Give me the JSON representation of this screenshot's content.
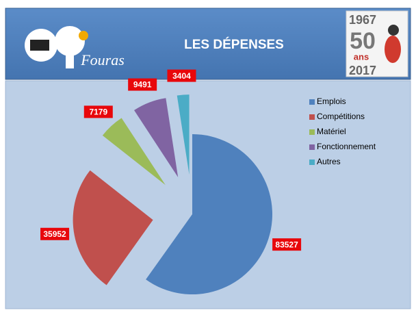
{
  "header": {
    "logo_text": "Fouras",
    "badge": {
      "year_start": "1967",
      "number": "50",
      "word": "ans",
      "year_end": "2017"
    }
  },
  "chart_data": {
    "type": "pie",
    "title": "LES DÉPENSES",
    "categories": [
      "Emplois",
      "Compétitions",
      "Matériel",
      "Fonctionnement",
      "Autres"
    ],
    "values": [
      83527,
      35952,
      7179,
      9491,
      3404
    ],
    "colors": [
      "#4f81bd",
      "#c0504d",
      "#9bbb59",
      "#8064a2",
      "#4bacc6"
    ],
    "legend": "right"
  }
}
